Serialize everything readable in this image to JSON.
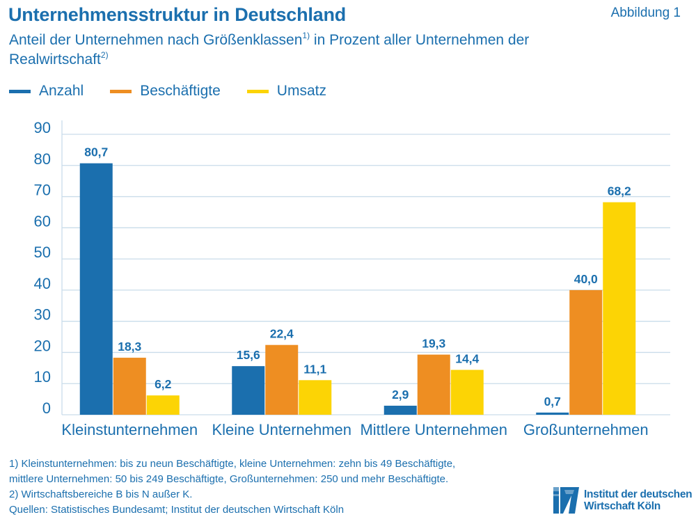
{
  "header": {
    "title": "Unternehmensstruktur in Deutschland",
    "figure_label": "Abbildung 1",
    "subtitle_part1": "Anteil der Unternehmen nach Größenklassen",
    "subtitle_sup1": "1)",
    "subtitle_part2": " in Prozent aller Unternehmen der Realwirtschaft",
    "subtitle_sup2": "2)"
  },
  "colors": {
    "anzahl": "#1b6fae",
    "beschaeftigte": "#ee8e22",
    "umsatz": "#fcd405",
    "grid": "#c9dcea",
    "axis_text": "#1b6fae",
    "label_text": "#1b6fae"
  },
  "chart_data": {
    "type": "bar",
    "title": "Unternehmensstruktur in Deutschland",
    "categories": [
      "Kleinstunternehmen",
      "Kleine Unternehmen",
      "Mittlere Unternehmen",
      "Großunternehmen"
    ],
    "series": [
      {
        "name": "Anzahl",
        "values": [
          80.7,
          15.6,
          2.9,
          0.7
        ],
        "labels": [
          "80,7",
          "15,6",
          "2,9",
          "0,7"
        ]
      },
      {
        "name": "Beschäftigte",
        "values": [
          18.3,
          22.4,
          19.3,
          40.0
        ],
        "labels": [
          "18,3",
          "22,4",
          "19,3",
          "40,0"
        ]
      },
      {
        "name": "Umsatz",
        "values": [
          6.2,
          11.1,
          14.4,
          68.2
        ],
        "labels": [
          "6,2",
          "11,1",
          "14,4",
          "68,2"
        ]
      }
    ],
    "yticks": [
      "0",
      "10",
      "20",
      "30",
      "40",
      "50",
      "60",
      "70",
      "80",
      "90"
    ],
    "ylim": [
      0,
      90
    ],
    "xlabel": "",
    "ylabel": "",
    "grid": true,
    "legend_position": "top-left"
  },
  "footnotes": [
    "1) Kleinstunternehmen: bis zu neun Beschäftigte, kleine Unternehmen: zehn bis 49 Beschäftigte,",
    "mittlere Unternehmen: 50 bis 249 Beschäftigte, Großunternehmen: 250 und mehr Beschäftigte.",
    "2) Wirtschaftsbereiche B bis N außer K.",
    "Quellen: Statistisches Bundesamt; Institut der deutschen Wirtschaft Köln"
  ],
  "logo": {
    "icon": "iw-logo-icon",
    "line1": "Institut der deutschen",
    "line2": "Wirtschaft Köln"
  }
}
